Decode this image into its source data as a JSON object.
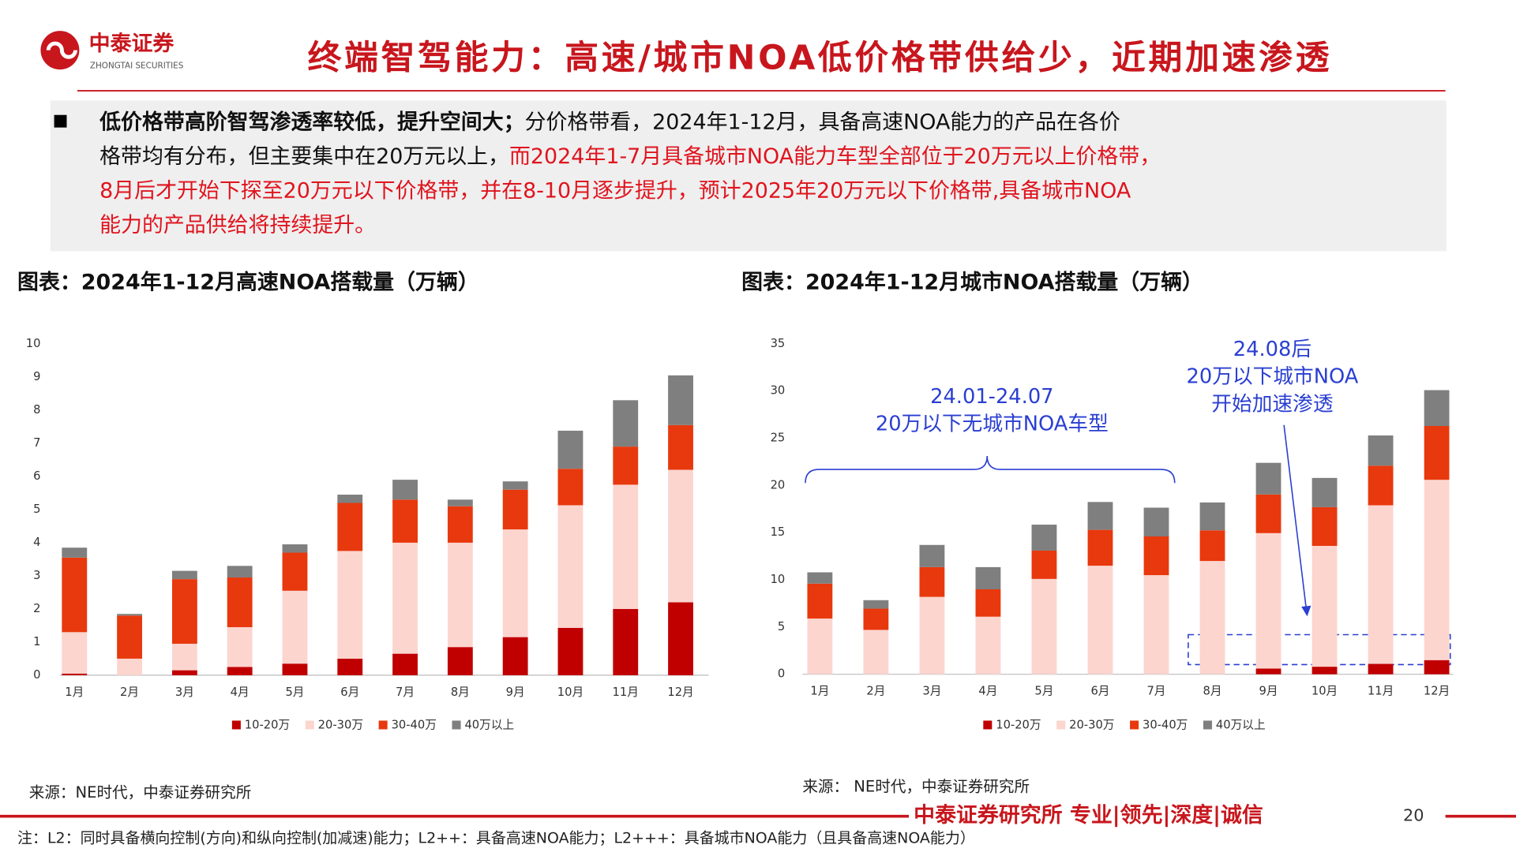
{
  "header": {
    "logo_cn": "中泰证券",
    "logo_en": "ZHONGTAI SECURITIES",
    "title": "终端智驾能力：高速/城市NOA低价格带供给少，近期加速渗透"
  },
  "bullet": {
    "lines": [
      [
        {
          "text": "低价格带高阶智驾渗透率较低，提升空间大；",
          "style": "bold"
        },
        {
          "text": "分价格带看，2024年1-12月，具备高速NOA能力的产品在各价",
          "style": "normal"
        }
      ],
      [
        {
          "text": "格带均有分布，但主要集中在20万元以上，",
          "style": "normal"
        },
        {
          "text": "而2024年1-7月具备城市NOA能力车型全部位于20万元以上价格带，",
          "style": "red"
        }
      ],
      [
        {
          "text": "8月后才开始下探至20万元以下价格带，并在8-10月逐步提升，预计2025年20万元以下价格带,具备城市NOA",
          "style": "red"
        }
      ],
      [
        {
          "text": "能力的产品供给将持续提升。",
          "style": "red"
        }
      ]
    ]
  },
  "chart_data": [
    {
      "type": "stacked_bar",
      "title": "图表：2024年1-12月高速NOA搭载量（万辆）",
      "categories": [
        "1月",
        "2月",
        "3月",
        "4月",
        "5月",
        "6月",
        "7月",
        "8月",
        "9月",
        "10月",
        "11月",
        "12月"
      ],
      "series": [
        {
          "name": "10-20万",
          "color": "#c00000",
          "values": [
            0.05,
            0,
            0.15,
            0.25,
            0.35,
            0.5,
            0.65,
            0.85,
            1.15,
            1.43,
            2.0,
            2.2
          ]
        },
        {
          "name": "20-30万",
          "color": "#fcd5cf",
          "values": [
            1.25,
            0.5,
            0.8,
            1.2,
            2.2,
            3.25,
            3.35,
            3.15,
            3.25,
            3.7,
            3.75,
            4.0
          ]
        },
        {
          "name": "30-40万",
          "color": "#e8380d",
          "values": [
            2.25,
            1.3,
            1.95,
            1.5,
            1.15,
            1.45,
            1.3,
            1.1,
            1.2,
            1.1,
            1.15,
            1.35
          ]
        },
        {
          "name": "40万以上",
          "color": "#7f7f7f",
          "values": [
            0.3,
            0.05,
            0.25,
            0.35,
            0.25,
            0.25,
            0.6,
            0.2,
            0.25,
            1.15,
            1.4,
            1.5
          ]
        }
      ],
      "ylim": [
        0,
        10
      ],
      "yticks": [
        0,
        1,
        2,
        3,
        4,
        5,
        6,
        7,
        8,
        9,
        10
      ],
      "source": "来源：NE时代，中泰证券研究所"
    },
    {
      "type": "stacked_bar",
      "title": "图表：2024年1-12月城市NOA搭载量（万辆）",
      "categories": [
        "1月",
        "2月",
        "3月",
        "4月",
        "5月",
        "6月",
        "7月",
        "8月",
        "9月",
        "10月",
        "11月",
        "12月"
      ],
      "series": [
        {
          "name": "10-20万",
          "color": "#c00000",
          "values": [
            0,
            0,
            0,
            0,
            0,
            0,
            0,
            0,
            0.6,
            0.8,
            1.1,
            1.5
          ]
        },
        {
          "name": "20-30万",
          "color": "#fcd5cf",
          "values": [
            5.9,
            4.7,
            8.2,
            6.1,
            10.1,
            11.5,
            10.5,
            12.0,
            14.35,
            12.8,
            16.8,
            19.1
          ]
        },
        {
          "name": "30-40万",
          "color": "#e8380d",
          "values": [
            3.7,
            2.25,
            3.15,
            2.9,
            3.0,
            3.8,
            4.1,
            3.25,
            4.1,
            4.1,
            4.2,
            5.7
          ]
        },
        {
          "name": "40万以上",
          "color": "#7f7f7f",
          "values": [
            1.2,
            0.9,
            2.35,
            2.35,
            2.75,
            2.95,
            3.05,
            2.95,
            3.35,
            3.1,
            3.2,
            3.8
          ]
        }
      ],
      "ylim": [
        0,
        35
      ],
      "yticks": [
        0,
        5,
        10,
        15,
        20,
        25,
        30,
        35
      ],
      "annotations": [
        [
          "24.01-24.07",
          "20万以下无城市NOA车型"
        ],
        [
          "24.08后",
          "20万以下城市NOA",
          "开始加速渗透"
        ]
      ],
      "source": "来源： NE时代，中泰证券研究所"
    }
  ],
  "footer": {
    "brand": "中泰证券研究所 专业|领先|深度|诚信",
    "page": "20",
    "note": "注：L2：同时具备横向控制(方向)和纵向控制(加减速)能力；L2++：具备高速NOA能力；L2+++：具备城市NOA能力（且具备高速NOA能力）"
  }
}
